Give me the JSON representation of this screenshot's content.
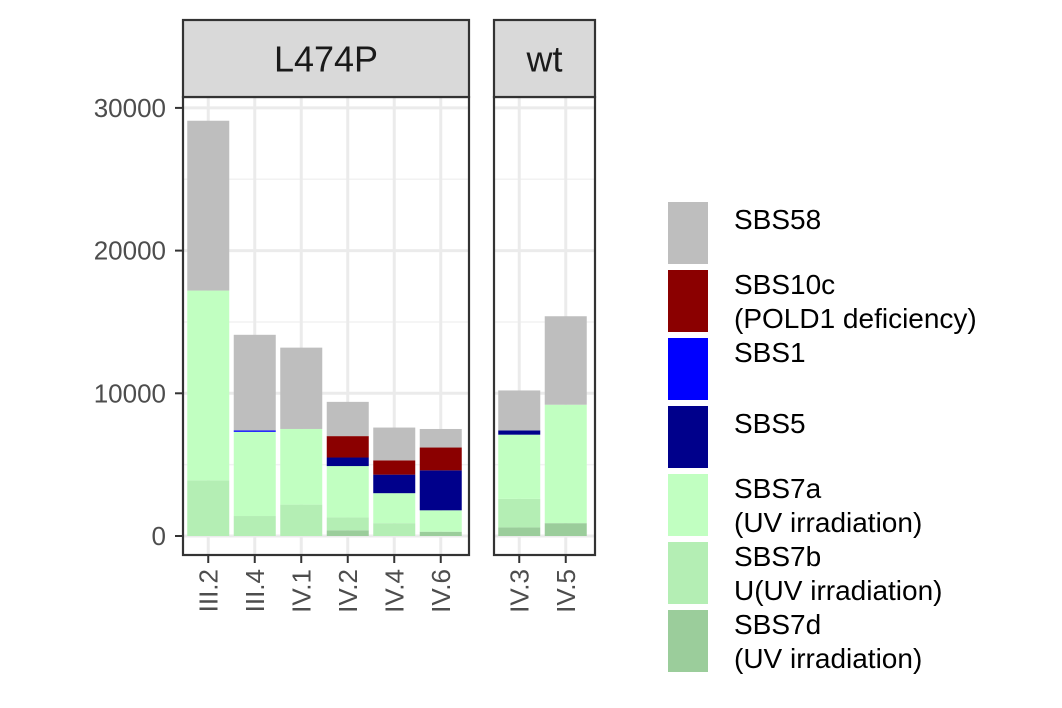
{
  "chart_data": {
    "type": "bar",
    "stacked": true,
    "faceted": true,
    "grid": true,
    "legend_position": "right",
    "ylim": [
      0,
      35000
    ],
    "yticks": [
      0,
      10000,
      20000,
      30000
    ],
    "ytick_labels": [
      "0",
      "10000",
      "20000",
      "30000"
    ],
    "facets": [
      {
        "title": "L474P",
        "categories": [
          "III.2",
          "III.4",
          "IV.1",
          "IV.2",
          "IV.4",
          "IV.6"
        ],
        "series": [
          {
            "name": "SBS7d",
            "values": [
              0,
              0,
              0,
              400,
              0,
              300
            ]
          },
          {
            "name": "SBS7b",
            "values": [
              3900,
              1400,
              2200,
              900,
              900,
              0
            ]
          },
          {
            "name": "SBS7a",
            "values": [
              13300,
              5900,
              5300,
              3600,
              2100,
              1500
            ]
          },
          {
            "name": "SBS5",
            "values": [
              0,
              0,
              0,
              600,
              1300,
              2800
            ]
          },
          {
            "name": "SBS1",
            "values": [
              0,
              100,
              0,
              0,
              0,
              0
            ]
          },
          {
            "name": "SBS10c",
            "values": [
              0,
              0,
              0,
              1500,
              1000,
              1600
            ]
          },
          {
            "name": "SBS58",
            "values": [
              11900,
              6700,
              5700,
              2400,
              2300,
              1300
            ]
          }
        ]
      },
      {
        "title": "wt",
        "categories": [
          "IV.3",
          "IV.5"
        ],
        "series": [
          {
            "name": "SBS7d",
            "values": [
              600,
              900
            ]
          },
          {
            "name": "SBS7b",
            "values": [
              2000,
              0
            ]
          },
          {
            "name": "SBS7a",
            "values": [
              4500,
              8300
            ]
          },
          {
            "name": "SBS5",
            "values": [
              300,
              0
            ]
          },
          {
            "name": "SBS1",
            "values": [
              0,
              0
            ]
          },
          {
            "name": "SBS10c",
            "values": [
              0,
              0
            ]
          },
          {
            "name": "SBS58",
            "values": [
              2800,
              6200
            ]
          }
        ]
      }
    ],
    "legend": [
      {
        "key": "SBS58",
        "lines": [
          "SBS58"
        ],
        "color": "#bebebe"
      },
      {
        "key": "SBS10c",
        "lines": [
          "SBS10c",
          "(POLD1 deficiency)"
        ],
        "color": "#8b0000"
      },
      {
        "key": "SBS1",
        "lines": [
          "SBS1"
        ],
        "color": "#0000ff"
      },
      {
        "key": "SBS5",
        "lines": [
          "SBS5"
        ],
        "color": "#00008b"
      },
      {
        "key": "SBS7a",
        "lines": [
          "SBS7a",
          "(UV irradiation)"
        ],
        "color": "#c1ffc1"
      },
      {
        "key": "SBS7b",
        "lines": [
          "SBS7b",
          "U(UV irradiation)"
        ],
        "color": "#b4eeb4"
      },
      {
        "key": "SBS7d",
        "lines": [
          "SBS7d",
          "(UV irradiation)"
        ],
        "color": "#9bcd9b"
      }
    ]
  }
}
